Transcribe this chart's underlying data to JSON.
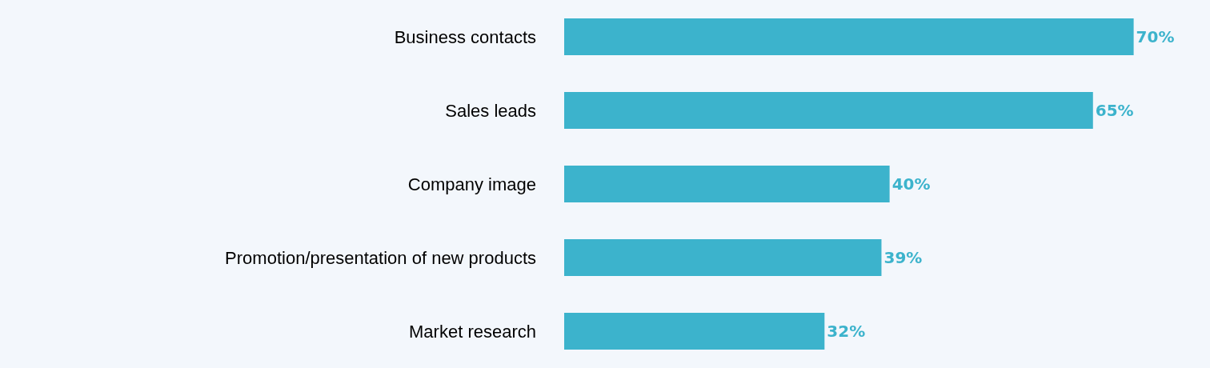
{
  "chart_data": {
    "type": "bar",
    "orientation": "horizontal",
    "categories": [
      "Business contacts",
      "Sales leads",
      "Company image",
      "Promotion/presentation of new products",
      "Market research"
    ],
    "values": [
      70,
      65,
      40,
      39,
      32
    ],
    "value_labels": [
      "70%",
      "65%",
      "40%",
      "39%",
      "32%"
    ],
    "color": "#3cb3cc",
    "tick_labels": "y"
  }
}
